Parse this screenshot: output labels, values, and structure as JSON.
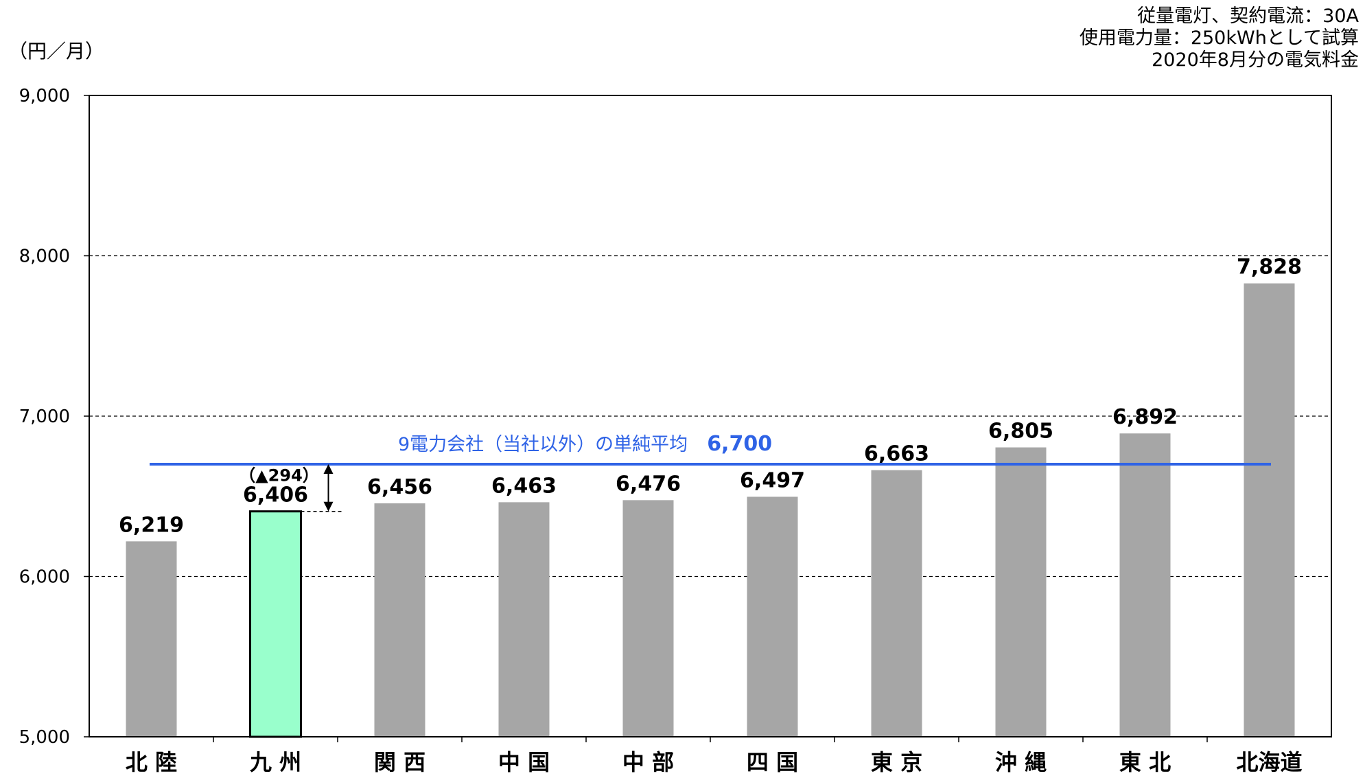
{
  "chart_data": {
    "type": "bar",
    "unit_label": "（円／月）",
    "notes": [
      "従量電灯、契約電流：30A",
      "使用電力量：250kWhとして試算",
      "2020年8月分の電気料金"
    ],
    "categories": [
      "北 陸",
      "九 州",
      "関 西",
      "中 国",
      "中 部",
      "四 国",
      "東 京",
      "沖 縄",
      "東 北",
      "北海道"
    ],
    "values": [
      6219,
      6406,
      6456,
      6463,
      6476,
      6497,
      6663,
      6805,
      6892,
      7828
    ],
    "value_labels": [
      "6,219",
      "6,406",
      "6,456",
      "6,463",
      "6,476",
      "6,497",
      "6,663",
      "6,805",
      "6,892",
      "7,828"
    ],
    "highlight_index": 1,
    "ylim": [
      5000,
      9000
    ],
    "yticks": [
      5000,
      6000,
      7000,
      8000,
      9000
    ],
    "ytick_labels": [
      "5,000",
      "6,000",
      "7,000",
      "8,000",
      "9,000"
    ],
    "grid": "horizontal dashed",
    "average": {
      "value": 6700,
      "label": "9電力会社（当社以外）の単純平均",
      "value_label": "6,700"
    },
    "difference_label": "（▲294）",
    "colors": {
      "bar": "#a6a6a6",
      "highlight": "#99ffcc",
      "average": "#2f63e6"
    }
  }
}
